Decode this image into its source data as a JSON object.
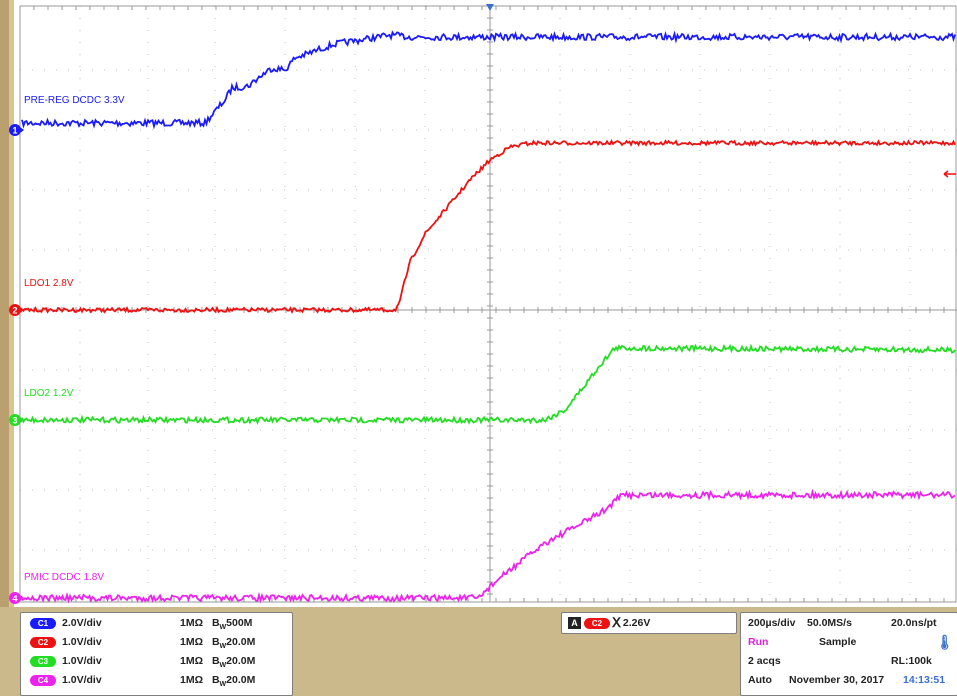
{
  "channels": [
    {
      "id": "1",
      "pill": "C1",
      "label": "PRE-REG DCDC 3.3V",
      "color": "#1a1aff",
      "scale": "2.0V/div",
      "impedance": "1MΩ",
      "bw": "500M"
    },
    {
      "id": "2",
      "pill": "C2",
      "label": "LDO1 2.8V",
      "color": "#ee1111",
      "scale": "1.0V/div",
      "impedance": "1MΩ",
      "bw": "20.0M"
    },
    {
      "id": "3",
      "pill": "C3",
      "label": "LDO2 1.2V",
      "color": "#22dd22",
      "scale": "1.0V/div",
      "impedance": "1MΩ",
      "bw": "20.0M"
    },
    {
      "id": "4",
      "pill": "C4",
      "label": "PMIC DCDC 1.8V",
      "color": "#ee22ee",
      "scale": "1.0V/div",
      "impedance": "1MΩ",
      "bw": "20.0M"
    }
  ],
  "trigger": {
    "box": "A",
    "source": "C2",
    "symbol": "Ⅹ",
    "level": "2.26V"
  },
  "acquisition": {
    "timebase": "200µs/div",
    "sample_rate": "50.0MS/s",
    "resolution": "20.0ns/pt",
    "state": "Run",
    "mode": "Sample",
    "acqs": "2 acqs",
    "record_length": "RL:100k",
    "trigger_mode": "Auto",
    "date": "November 30, 2017",
    "time": "14:13:51"
  },
  "bw_symbol": "B",
  "bw_sub": "W",
  "colors": {
    "grid": "#bfbfbf",
    "frame": "#cbb98c",
    "panel_border": "#7f7f7f"
  }
}
